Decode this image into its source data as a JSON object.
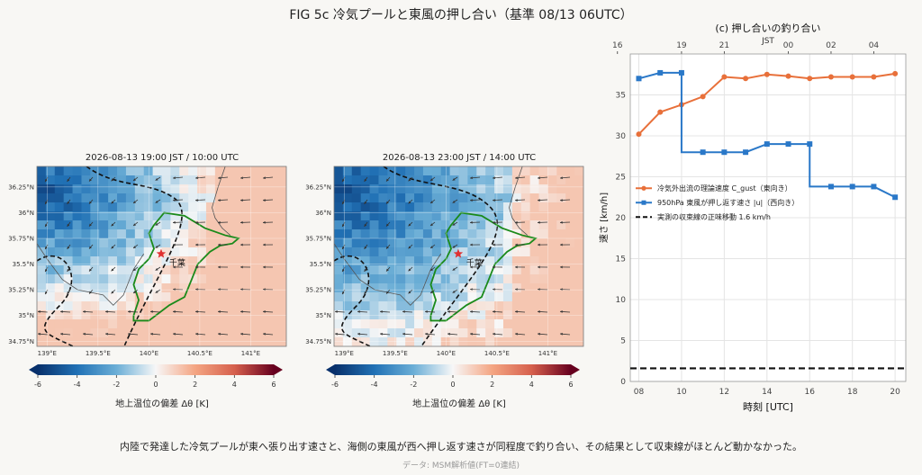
{
  "page": {
    "title": "FIG 5c  冷気プールと東風の押し合い（基準 08/13 06UTC）",
    "caption": "内陸で発達した冷気プールが東へ張り出す速さと、海側の東風が西へ押し返す速さが同程度で釣り合い、その結果として収束線がほとんど動かなかった。",
    "source": "データ: MSM解析値(FT=0連結)"
  },
  "maps": [
    {
      "title": "2026-08-13 19:00 JST / 10:00 UTC",
      "cold_extent": 0.62,
      "colorbar_label": "地上温位の偏差 Δθ [K]"
    },
    {
      "title": "2026-08-13 23:00 JST / 14:00 UTC",
      "cold_extent": 0.85,
      "colorbar_label": "地上温位の偏差 Δθ [K]"
    }
  ],
  "map_axes": {
    "x_ticks": [
      "139°E",
      "139.5°E",
      "140°E",
      "140.5°E",
      "141°E"
    ],
    "y_ticks": [
      "36.25°N",
      "36°N",
      "35.75°N",
      "35.5°N",
      "35.25°N",
      "35°N",
      "34.75°N"
    ],
    "station_label": "千葉",
    "colorbar_ticks": [
      "-6",
      "-4",
      "-2",
      "0",
      "2",
      "4",
      "6"
    ],
    "colorbar_range": [
      -6,
      6
    ]
  },
  "colors": {
    "gust": "#e8703a",
    "wind": "#2a78c8",
    "line": "#111111",
    "coast": "#1a8a1a",
    "star": "#e03030"
  },
  "chart_data": {
    "type": "line",
    "title": "(c) 押し合いの釣り合い",
    "xlabel": "時刻 [UTC]",
    "ylabel": "速さ [km/h]",
    "top_axis_label": "JST",
    "top_ticks": [
      "16",
      "19",
      "21",
      "00",
      "02",
      "04"
    ],
    "x": [
      8,
      9,
      10,
      11,
      12,
      13,
      14,
      15,
      16,
      17,
      18,
      19,
      20
    ],
    "xlim": [
      7.6,
      20.5
    ],
    "ylim": [
      0,
      40
    ],
    "x_ticks": [
      "08",
      "10",
      "12",
      "14",
      "16",
      "18",
      "20"
    ],
    "y_ticks": [
      "0",
      "5",
      "10",
      "15",
      "20",
      "25",
      "30",
      "35"
    ],
    "grid": true,
    "legend_position": "center-left",
    "series": [
      {
        "name": "冷気外出流の理論速度 C_gust（東向き）",
        "values": [
          30.2,
          32.9,
          33.8,
          34.8,
          37.2,
          37.0,
          37.5,
          37.3,
          37.0,
          37.2,
          37.2,
          37.2,
          37.6
        ]
      },
      {
        "name": "950hPa 東風が押し返す速さ |u|（西向き）",
        "values": [
          37.0,
          37.7,
          37.7,
          28.0,
          28.0,
          28.0,
          29.0,
          29.0,
          29.0,
          23.8,
          23.8,
          23.8,
          22.5
        ]
      }
    ],
    "reference_line": {
      "name": "実測の収束線の正味移動 1.6 km/h",
      "value": 1.6
    }
  }
}
